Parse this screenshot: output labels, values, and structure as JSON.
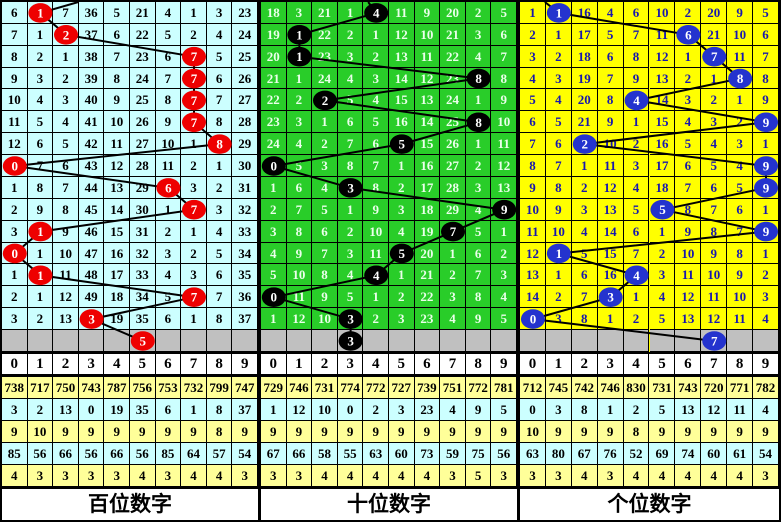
{
  "colors": {
    "grid_line": "#000000",
    "gray_row": "#C0C0C0",
    "stats_row_bgs": [
      "#FFFF99",
      "#CCFFFF",
      "#FFFF99",
      "#CCFFFF",
      "#FFFF99"
    ],
    "ball_text": "#FFFFFF",
    "trend_line": "#000000"
  },
  "chart_data": {
    "type": "line",
    "title": "3-digit lottery trend chart (hundreds / tens / units digit positions)",
    "x_range": [
      0,
      9
    ],
    "series": [
      {
        "name": "百位数字",
        "values": [
          1,
          2,
          7,
          7,
          7,
          7,
          8,
          0,
          6,
          7,
          1,
          0,
          1,
          7,
          3
        ],
        "prediction": 5
      },
      {
        "name": "十位数字",
        "values": [
          4,
          1,
          1,
          8,
          2,
          8,
          5,
          0,
          3,
          9,
          7,
          5,
          4,
          0,
          3
        ],
        "prediction": 3
      },
      {
        "name": "个位数字",
        "values": [
          1,
          6,
          7,
          8,
          4,
          9,
          2,
          9,
          9,
          5,
          9,
          1,
          4,
          3,
          0
        ],
        "prediction": 7
      }
    ]
  },
  "panels": [
    {
      "id": "hundreds",
      "label": "百位数字",
      "bg": "#CCFFFF",
      "text_color": "#000000",
      "ball_color": "#EE0000",
      "entry_offset": 38,
      "columns": [
        "0",
        "1",
        "2",
        "3",
        "4",
        "5",
        "6",
        "7",
        "8",
        "9"
      ],
      "rows": [
        {
          "cells": [
            "6",
            "1",
            "7",
            "36",
            "5",
            "21",
            "4",
            "1",
            "3",
            "23"
          ],
          "ball_col": 1
        },
        {
          "cells": [
            "7",
            "1",
            "2",
            "37",
            "6",
            "22",
            "5",
            "2",
            "4",
            "24"
          ],
          "ball_col": 2
        },
        {
          "cells": [
            "8",
            "2",
            "1",
            "38",
            "7",
            "23",
            "6",
            "7",
            "5",
            "25"
          ],
          "ball_col": 7
        },
        {
          "cells": [
            "9",
            "3",
            "2",
            "39",
            "8",
            "24",
            "7",
            "7",
            "6",
            "26"
          ],
          "ball_col": 7
        },
        {
          "cells": [
            "10",
            "4",
            "3",
            "40",
            "9",
            "25",
            "8",
            "7",
            "7",
            "27"
          ],
          "ball_col": 7
        },
        {
          "cells": [
            "11",
            "5",
            "4",
            "41",
            "10",
            "26",
            "9",
            "7",
            "8",
            "28"
          ],
          "ball_col": 7
        },
        {
          "cells": [
            "12",
            "6",
            "5",
            "42",
            "11",
            "27",
            "10",
            "1",
            "8",
            "29"
          ],
          "ball_col": 8
        },
        {
          "cells": [
            "0",
            "7",
            "6",
            "43",
            "12",
            "28",
            "11",
            "2",
            "1",
            "30"
          ],
          "ball_col": 0
        },
        {
          "cells": [
            "1",
            "8",
            "7",
            "44",
            "13",
            "29",
            "6",
            "3",
            "2",
            "31"
          ],
          "ball_col": 6
        },
        {
          "cells": [
            "2",
            "9",
            "8",
            "45",
            "14",
            "30",
            "1",
            "7",
            "3",
            "32"
          ],
          "ball_col": 7
        },
        {
          "cells": [
            "3",
            "1",
            "9",
            "46",
            "15",
            "31",
            "2",
            "1",
            "4",
            "33"
          ],
          "ball_col": 1
        },
        {
          "cells": [
            "0",
            "1",
            "10",
            "47",
            "16",
            "32",
            "3",
            "2",
            "5",
            "34"
          ],
          "ball_col": 0
        },
        {
          "cells": [
            "1",
            "1",
            "11",
            "48",
            "17",
            "33",
            "4",
            "3",
            "6",
            "35"
          ],
          "ball_col": 1
        },
        {
          "cells": [
            "2",
            "1",
            "12",
            "49",
            "18",
            "34",
            "5",
            "7",
            "7",
            "36"
          ],
          "ball_col": 7
        },
        {
          "cells": [
            "3",
            "2",
            "13",
            "3",
            "19",
            "35",
            "6",
            "1",
            "8",
            "37"
          ],
          "ball_col": 3
        }
      ],
      "prediction": {
        "col": 5,
        "value": "5"
      },
      "stats_rows": [
        [
          "738",
          "717",
          "750",
          "743",
          "787",
          "756",
          "753",
          "732",
          "799",
          "747"
        ],
        [
          "3",
          "2",
          "13",
          "0",
          "19",
          "35",
          "6",
          "1",
          "8",
          "37"
        ],
        [
          "9",
          "10",
          "9",
          "9",
          "9",
          "9",
          "9",
          "9",
          "8",
          "9"
        ],
        [
          "85",
          "56",
          "66",
          "56",
          "66",
          "56",
          "85",
          "64",
          "57",
          "54"
        ],
        [
          "4",
          "3",
          "3",
          "3",
          "3",
          "4",
          "3",
          "4",
          "4",
          "3"
        ]
      ]
    },
    {
      "id": "tens",
      "label": "十位数字",
      "bg": "#29CD29",
      "text_color": "#EAFFEA",
      "ball_color": "#000000",
      "entry_offset": -8,
      "columns": [
        "0",
        "1",
        "2",
        "3",
        "4",
        "5",
        "6",
        "7",
        "8",
        "9"
      ],
      "rows": [
        {
          "cells": [
            "18",
            "3",
            "21",
            "1",
            "4",
            "11",
            "9",
            "20",
            "2",
            "5"
          ],
          "ball_col": 4
        },
        {
          "cells": [
            "19",
            "1",
            "22",
            "2",
            "1",
            "12",
            "10",
            "21",
            "3",
            "6"
          ],
          "ball_col": 1
        },
        {
          "cells": [
            "20",
            "1",
            "23",
            "3",
            "2",
            "13",
            "11",
            "22",
            "4",
            "7"
          ],
          "ball_col": 1
        },
        {
          "cells": [
            "21",
            "1",
            "24",
            "4",
            "3",
            "14",
            "12",
            "23",
            "8",
            "8"
          ],
          "ball_col": 8
        },
        {
          "cells": [
            "22",
            "2",
            "2",
            "5",
            "4",
            "15",
            "13",
            "24",
            "1",
            "9"
          ],
          "ball_col": 2
        },
        {
          "cells": [
            "23",
            "3",
            "1",
            "6",
            "5",
            "16",
            "14",
            "25",
            "8",
            "10"
          ],
          "ball_col": 8
        },
        {
          "cells": [
            "24",
            "4",
            "2",
            "7",
            "6",
            "5",
            "15",
            "26",
            "1",
            "11"
          ],
          "ball_col": 5
        },
        {
          "cells": [
            "0",
            "5",
            "3",
            "8",
            "7",
            "1",
            "16",
            "27",
            "2",
            "12"
          ],
          "ball_col": 0
        },
        {
          "cells": [
            "1",
            "6",
            "4",
            "3",
            "8",
            "2",
            "17",
            "28",
            "3",
            "13"
          ],
          "ball_col": 3
        },
        {
          "cells": [
            "2",
            "7",
            "5",
            "1",
            "9",
            "3",
            "18",
            "29",
            "4",
            "9"
          ],
          "ball_col": 9
        },
        {
          "cells": [
            "3",
            "8",
            "6",
            "2",
            "10",
            "4",
            "19",
            "7",
            "5",
            "1"
          ],
          "ball_col": 7
        },
        {
          "cells": [
            "4",
            "9",
            "7",
            "3",
            "11",
            "5",
            "20",
            "1",
            "6",
            "2"
          ],
          "ball_col": 5
        },
        {
          "cells": [
            "5",
            "10",
            "8",
            "4",
            "4",
            "1",
            "21",
            "2",
            "7",
            "3"
          ],
          "ball_col": 4
        },
        {
          "cells": [
            "0",
            "11",
            "9",
            "5",
            "1",
            "2",
            "22",
            "3",
            "8",
            "4"
          ],
          "ball_col": 0
        },
        {
          "cells": [
            "1",
            "12",
            "10",
            "3",
            "2",
            "3",
            "23",
            "4",
            "9",
            "5"
          ],
          "ball_col": 3
        }
      ],
      "prediction": {
        "col": 3,
        "value": "3"
      },
      "stats_rows": [
        [
          "729",
          "746",
          "731",
          "774",
          "772",
          "727",
          "739",
          "751",
          "772",
          "781"
        ],
        [
          "1",
          "12",
          "10",
          "0",
          "2",
          "3",
          "23",
          "4",
          "9",
          "5"
        ],
        [
          "9",
          "9",
          "9",
          "9",
          "9",
          "9",
          "9",
          "9",
          "9",
          "9"
        ],
        [
          "67",
          "66",
          "58",
          "55",
          "63",
          "60",
          "73",
          "59",
          "75",
          "56"
        ],
        [
          "3",
          "3",
          "4",
          "4",
          "4",
          "4",
          "4",
          "3",
          "5",
          "3"
        ]
      ]
    },
    {
      "id": "units",
      "label": "个位数字",
      "bg": "#FFFF00",
      "text_color": "#1717AE",
      "ball_color": "#2433CE",
      "entry_offset": -14,
      "columns": [
        "0",
        "1",
        "2",
        "3",
        "4",
        "5",
        "6",
        "7",
        "8",
        "9"
      ],
      "rows": [
        {
          "cells": [
            "1",
            "1",
            "16",
            "4",
            "6",
            "10",
            "2",
            "20",
            "9",
            "5"
          ],
          "ball_col": 1
        },
        {
          "cells": [
            "2",
            "1",
            "17",
            "5",
            "7",
            "11",
            "6",
            "21",
            "10",
            "6"
          ],
          "ball_col": 6
        },
        {
          "cells": [
            "3",
            "2",
            "18",
            "6",
            "8",
            "12",
            "1",
            "7",
            "11",
            "7"
          ],
          "ball_col": 7
        },
        {
          "cells": [
            "4",
            "3",
            "19",
            "7",
            "9",
            "13",
            "2",
            "1",
            "8",
            "8"
          ],
          "ball_col": 8
        },
        {
          "cells": [
            "5",
            "4",
            "20",
            "8",
            "4",
            "14",
            "3",
            "2",
            "1",
            "9"
          ],
          "ball_col": 4
        },
        {
          "cells": [
            "6",
            "5",
            "21",
            "9",
            "1",
            "15",
            "4",
            "3",
            "2",
            "9"
          ],
          "ball_col": 9
        },
        {
          "cells": [
            "7",
            "6",
            "2",
            "10",
            "2",
            "16",
            "5",
            "4",
            "3",
            "1"
          ],
          "ball_col": 2
        },
        {
          "cells": [
            "8",
            "7",
            "1",
            "11",
            "3",
            "17",
            "6",
            "5",
            "4",
            "9"
          ],
          "ball_col": 9
        },
        {
          "cells": [
            "9",
            "8",
            "2",
            "12",
            "4",
            "18",
            "7",
            "6",
            "5",
            "9"
          ],
          "ball_col": 9
        },
        {
          "cells": [
            "10",
            "9",
            "3",
            "13",
            "5",
            "5",
            "8",
            "7",
            "6",
            "1"
          ],
          "ball_col": 5
        },
        {
          "cells": [
            "11",
            "10",
            "4",
            "14",
            "6",
            "1",
            "9",
            "8",
            "7",
            "9"
          ],
          "ball_col": 9
        },
        {
          "cells": [
            "12",
            "1",
            "5",
            "15",
            "7",
            "2",
            "10",
            "9",
            "8",
            "1"
          ],
          "ball_col": 1
        },
        {
          "cells": [
            "13",
            "1",
            "6",
            "16",
            "4",
            "3",
            "11",
            "10",
            "9",
            "2"
          ],
          "ball_col": 4
        },
        {
          "cells": [
            "14",
            "2",
            "7",
            "3",
            "1",
            "4",
            "12",
            "11",
            "10",
            "3"
          ],
          "ball_col": 3
        },
        {
          "cells": [
            "0",
            "3",
            "8",
            "1",
            "2",
            "5",
            "13",
            "12",
            "11",
            "4"
          ],
          "ball_col": 0
        }
      ],
      "prediction": {
        "col": 7,
        "value": "7"
      },
      "stats_rows": [
        [
          "712",
          "745",
          "742",
          "746",
          "830",
          "731",
          "743",
          "720",
          "771",
          "782"
        ],
        [
          "0",
          "3",
          "8",
          "1",
          "2",
          "5",
          "13",
          "12",
          "11",
          "4"
        ],
        [
          "10",
          "9",
          "9",
          "9",
          "8",
          "9",
          "9",
          "9",
          "9",
          "9"
        ],
        [
          "63",
          "80",
          "67",
          "76",
          "52",
          "69",
          "74",
          "60",
          "61",
          "54"
        ],
        [
          "3",
          "3",
          "4",
          "3",
          "4",
          "4",
          "4",
          "4",
          "4",
          "3"
        ]
      ]
    }
  ]
}
